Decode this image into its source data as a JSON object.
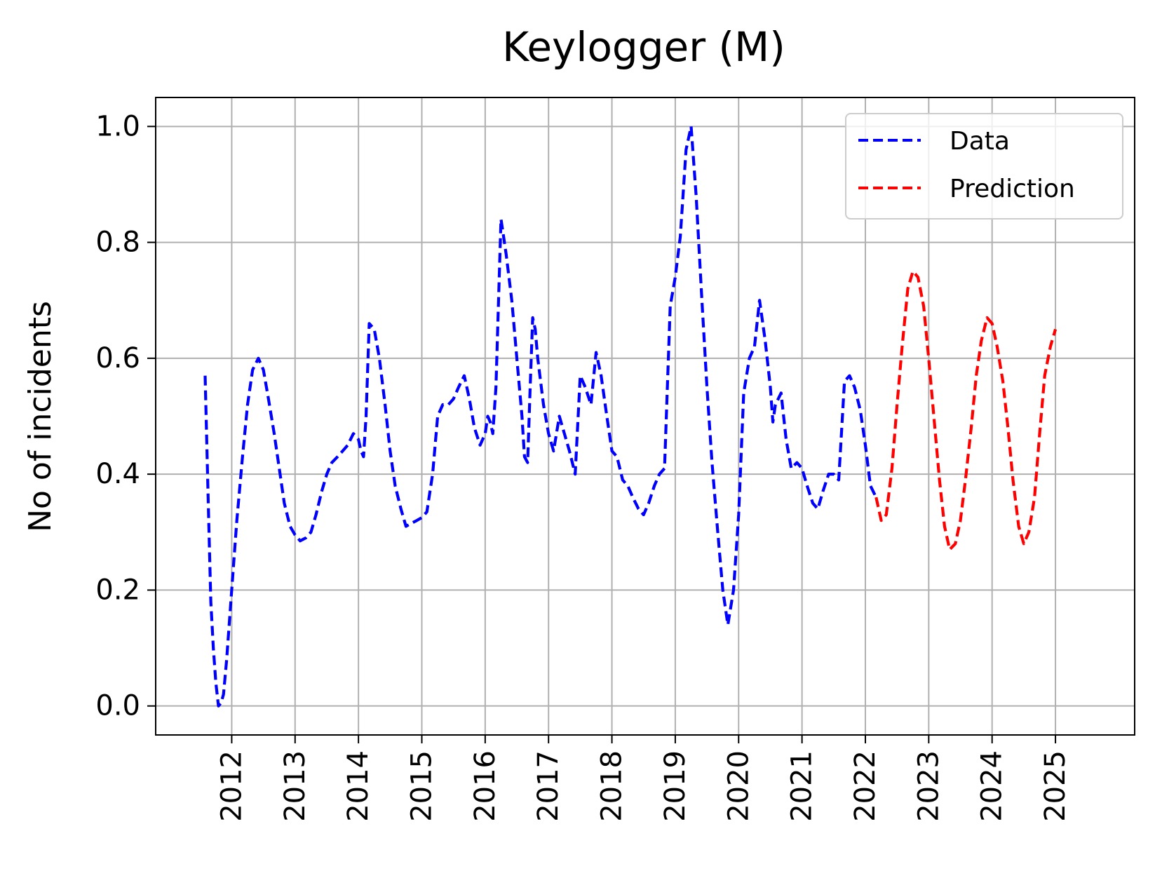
{
  "chart_data": {
    "type": "line",
    "title": "Keylogger (M)",
    "xlabel": "",
    "ylabel": "No of incidents",
    "xlim": [
      2010.8,
      2026.25
    ],
    "ylim": [
      -0.05,
      1.05
    ],
    "x_ticks": [
      "2012",
      "2013",
      "2014",
      "2015",
      "2016",
      "2017",
      "2018",
      "2019",
      "2020",
      "2021",
      "2022",
      "2023",
      "2024",
      "2025"
    ],
    "y_ticks": [
      "0.0",
      "0.2",
      "0.4",
      "0.6",
      "0.8",
      "1.0"
    ],
    "grid": true,
    "legend_position": "top-right",
    "series": [
      {
        "name": "Data",
        "color": "#0000ff",
        "style": "dashed",
        "points": [
          [
            2011.58,
            0.57
          ],
          [
            2011.63,
            0.35
          ],
          [
            2011.67,
            0.18
          ],
          [
            2011.71,
            0.1
          ],
          [
            2011.75,
            0.04
          ],
          [
            2011.79,
            0.0
          ],
          [
            2011.83,
            0.005
          ],
          [
            2011.87,
            0.02
          ],
          [
            2011.92,
            0.08
          ],
          [
            2012.0,
            0.2
          ],
          [
            2012.08,
            0.32
          ],
          [
            2012.17,
            0.43
          ],
          [
            2012.25,
            0.52
          ],
          [
            2012.33,
            0.58
          ],
          [
            2012.42,
            0.6
          ],
          [
            2012.5,
            0.58
          ],
          [
            2012.58,
            0.53
          ],
          [
            2012.67,
            0.47
          ],
          [
            2012.75,
            0.41
          ],
          [
            2012.83,
            0.35
          ],
          [
            2012.92,
            0.31
          ],
          [
            2013.0,
            0.295
          ],
          [
            2013.08,
            0.285
          ],
          [
            2013.17,
            0.29
          ],
          [
            2013.25,
            0.3
          ],
          [
            2013.33,
            0.33
          ],
          [
            2013.42,
            0.37
          ],
          [
            2013.5,
            0.4
          ],
          [
            2013.58,
            0.42
          ],
          [
            2013.67,
            0.43
          ],
          [
            2013.75,
            0.44
          ],
          [
            2013.83,
            0.45
          ],
          [
            2013.92,
            0.47
          ],
          [
            2014.0,
            0.46
          ],
          [
            2014.04,
            0.44
          ],
          [
            2014.08,
            0.43
          ],
          [
            2014.12,
            0.5
          ],
          [
            2014.17,
            0.66
          ],
          [
            2014.25,
            0.65
          ],
          [
            2014.33,
            0.6
          ],
          [
            2014.42,
            0.52
          ],
          [
            2014.5,
            0.44
          ],
          [
            2014.58,
            0.38
          ],
          [
            2014.67,
            0.34
          ],
          [
            2014.75,
            0.31
          ],
          [
            2014.83,
            0.315
          ],
          [
            2014.92,
            0.32
          ],
          [
            2015.0,
            0.325
          ],
          [
            2015.08,
            0.335
          ],
          [
            2015.17,
            0.4
          ],
          [
            2015.25,
            0.5
          ],
          [
            2015.33,
            0.52
          ],
          [
            2015.42,
            0.52
          ],
          [
            2015.5,
            0.53
          ],
          [
            2015.58,
            0.55
          ],
          [
            2015.67,
            0.57
          ],
          [
            2015.75,
            0.53
          ],
          [
            2015.83,
            0.48
          ],
          [
            2015.92,
            0.45
          ],
          [
            2016.0,
            0.47
          ],
          [
            2016.04,
            0.5
          ],
          [
            2016.08,
            0.49
          ],
          [
            2016.12,
            0.47
          ],
          [
            2016.17,
            0.55
          ],
          [
            2016.25,
            0.84
          ],
          [
            2016.29,
            0.81
          ],
          [
            2016.33,
            0.78
          ],
          [
            2016.42,
            0.7
          ],
          [
            2016.5,
            0.6
          ],
          [
            2016.58,
            0.5
          ],
          [
            2016.62,
            0.43
          ],
          [
            2016.67,
            0.42
          ],
          [
            2016.71,
            0.55
          ],
          [
            2016.75,
            0.67
          ],
          [
            2016.79,
            0.65
          ],
          [
            2016.83,
            0.6
          ],
          [
            2016.92,
            0.52
          ],
          [
            2017.0,
            0.47
          ],
          [
            2017.08,
            0.44
          ],
          [
            2017.17,
            0.5
          ],
          [
            2017.25,
            0.47
          ],
          [
            2017.33,
            0.44
          ],
          [
            2017.42,
            0.4
          ],
          [
            2017.5,
            0.57
          ],
          [
            2017.58,
            0.55
          ],
          [
            2017.67,
            0.52
          ],
          [
            2017.75,
            0.61
          ],
          [
            2017.83,
            0.57
          ],
          [
            2017.92,
            0.5
          ],
          [
            2018.0,
            0.44
          ],
          [
            2018.08,
            0.43
          ],
          [
            2018.17,
            0.39
          ],
          [
            2018.25,
            0.38
          ],
          [
            2018.33,
            0.36
          ],
          [
            2018.42,
            0.34
          ],
          [
            2018.5,
            0.33
          ],
          [
            2018.58,
            0.35
          ],
          [
            2018.67,
            0.38
          ],
          [
            2018.75,
            0.4
          ],
          [
            2018.83,
            0.41
          ],
          [
            2018.92,
            0.69
          ],
          [
            2019.0,
            0.74
          ],
          [
            2019.08,
            0.81
          ],
          [
            2019.17,
            0.96
          ],
          [
            2019.25,
            1.0
          ],
          [
            2019.33,
            0.88
          ],
          [
            2019.42,
            0.7
          ],
          [
            2019.5,
            0.55
          ],
          [
            2019.58,
            0.42
          ],
          [
            2019.67,
            0.3
          ],
          [
            2019.75,
            0.2
          ],
          [
            2019.83,
            0.14
          ],
          [
            2019.92,
            0.2
          ],
          [
            2020.0,
            0.33
          ],
          [
            2020.08,
            0.54
          ],
          [
            2020.17,
            0.6
          ],
          [
            2020.25,
            0.62
          ],
          [
            2020.33,
            0.7
          ],
          [
            2020.42,
            0.63
          ],
          [
            2020.5,
            0.55
          ],
          [
            2020.54,
            0.49
          ],
          [
            2020.58,
            0.52
          ],
          [
            2020.67,
            0.54
          ],
          [
            2020.75,
            0.46
          ],
          [
            2020.83,
            0.41
          ],
          [
            2020.92,
            0.42
          ],
          [
            2021.0,
            0.41
          ],
          [
            2021.08,
            0.38
          ],
          [
            2021.17,
            0.35
          ],
          [
            2021.25,
            0.34
          ],
          [
            2021.33,
            0.37
          ],
          [
            2021.42,
            0.4
          ],
          [
            2021.5,
            0.4
          ],
          [
            2021.58,
            0.39
          ],
          [
            2021.67,
            0.56
          ],
          [
            2021.75,
            0.57
          ],
          [
            2021.83,
            0.55
          ],
          [
            2021.92,
            0.51
          ],
          [
            2022.0,
            0.45
          ],
          [
            2022.08,
            0.38
          ],
          [
            2022.17,
            0.36
          ]
        ]
      },
      {
        "name": "Prediction",
        "color": "#ff0000",
        "style": "dashed",
        "points": [
          [
            2022.17,
            0.36
          ],
          [
            2022.25,
            0.32
          ],
          [
            2022.33,
            0.33
          ],
          [
            2022.42,
            0.41
          ],
          [
            2022.5,
            0.52
          ],
          [
            2022.58,
            0.62
          ],
          [
            2022.67,
            0.72
          ],
          [
            2022.75,
            0.75
          ],
          [
            2022.83,
            0.74
          ],
          [
            2022.92,
            0.69
          ],
          [
            2023.0,
            0.6
          ],
          [
            2023.08,
            0.5
          ],
          [
            2023.17,
            0.39
          ],
          [
            2023.25,
            0.31
          ],
          [
            2023.33,
            0.27
          ],
          [
            2023.42,
            0.28
          ],
          [
            2023.5,
            0.32
          ],
          [
            2023.58,
            0.39
          ],
          [
            2023.67,
            0.48
          ],
          [
            2023.75,
            0.57
          ],
          [
            2023.83,
            0.63
          ],
          [
            2023.92,
            0.67
          ],
          [
            2024.0,
            0.66
          ],
          [
            2024.08,
            0.62
          ],
          [
            2024.17,
            0.56
          ],
          [
            2024.25,
            0.48
          ],
          [
            2024.33,
            0.39
          ],
          [
            2024.42,
            0.31
          ],
          [
            2024.5,
            0.28
          ],
          [
            2024.58,
            0.3
          ],
          [
            2024.67,
            0.36
          ],
          [
            2024.75,
            0.47
          ],
          [
            2024.83,
            0.57
          ],
          [
            2024.92,
            0.62
          ],
          [
            2025.0,
            0.65
          ]
        ]
      }
    ]
  }
}
